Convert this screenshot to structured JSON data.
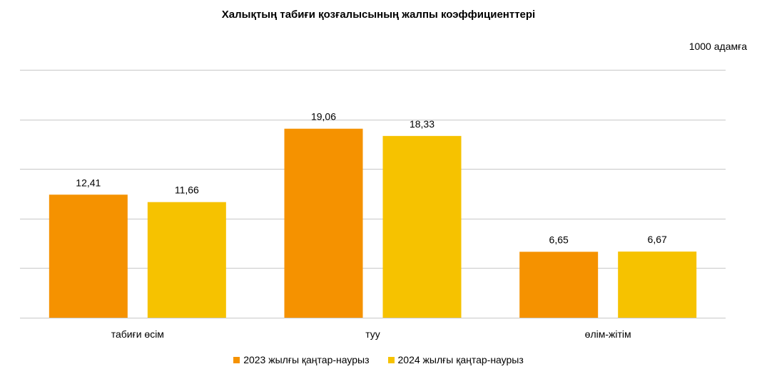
{
  "chart_data": {
    "type": "bar",
    "title": "Халықтың табиғи қозғалысының жалпы коэффициенттері",
    "unit": "1000 адамға",
    "categories": [
      "табиғи өсім",
      "туу",
      "өлім-жітім"
    ],
    "series": [
      {
        "name": "2023 жылғы қаңтар-наурыз",
        "values": [
          12.41,
          19.06,
          6.65
        ],
        "labels": [
          "12,41",
          "19,06",
          "6,65"
        ],
        "color": "#F59200"
      },
      {
        "name": "2024 жылғы қаңтар-наурыз",
        "values": [
          11.66,
          18.33,
          6.67
        ],
        "labels": [
          "11,66",
          "18,33",
          "6,67"
        ],
        "color": "#F6C200"
      }
    ],
    "ylim": [
      0,
      25
    ],
    "y_tick_step": 5,
    "y_tick_labels_shown": false,
    "grid": true,
    "legend": "bottom"
  }
}
